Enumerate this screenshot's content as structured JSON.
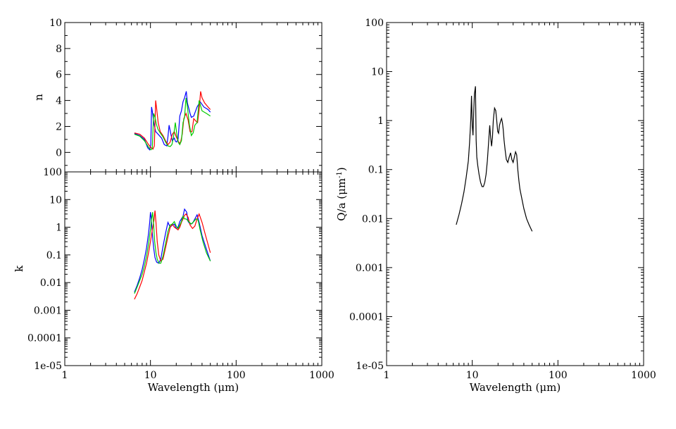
{
  "chart_data": [
    {
      "id": "panel_n",
      "type": "line",
      "title": "",
      "xlabel": "",
      "ylabel": "n",
      "xscale": "log",
      "yscale": "linear",
      "xlim": [
        1,
        1000
      ],
      "ylim": [
        -1.5,
        10
      ],
      "x_ticks": [],
      "y_ticks": [
        "0",
        "2",
        "4",
        "6",
        "8",
        "10"
      ],
      "y_tick_values": [
        0,
        2,
        4,
        6,
        8,
        10
      ],
      "series": [
        {
          "color": "#0000ff",
          "x": [
            6.5,
            7.5,
            8.5,
            9.3,
            9.8,
            10.1,
            10.3,
            10.5,
            11.0,
            11.5,
            12.3,
            13.5,
            14.5,
            15.5,
            16.0,
            16.5,
            17.3,
            18.0,
            19.0,
            19.6,
            20.2,
            21.0,
            22.0,
            23.0,
            24.0,
            25.0,
            26.2,
            27.0,
            28.0,
            29.0,
            30.0,
            32.0,
            35.0,
            38.0,
            42.0,
            47.0,
            50.0
          ],
          "y": [
            1.45,
            1.3,
            1.0,
            0.35,
            0.2,
            0.6,
            3.5,
            3.2,
            2.2,
            1.6,
            1.4,
            1.1,
            0.6,
            0.5,
            1.2,
            2.1,
            1.4,
            0.9,
            1.1,
            0.85,
            0.8,
            1.0,
            2.8,
            3.2,
            3.9,
            4.2,
            4.7,
            3.8,
            3.4,
            3.0,
            2.7,
            2.8,
            3.5,
            3.9,
            3.5,
            3.3,
            3.1
          ]
        },
        {
          "color": "#ff0000",
          "x": [
            6.5,
            7.5,
            8.5,
            9.5,
            10.2,
            10.7,
            11.1,
            11.5,
            11.8,
            12.3,
            13.0,
            14.0,
            15.0,
            16.0,
            17.0,
            18.0,
            19.0,
            20.0,
            21.0,
            21.8,
            22.5,
            23.5,
            24.5,
            26.0,
            27.5,
            29.0,
            30.5,
            32.0,
            34.0,
            35.5,
            37.0,
            38.5,
            40.0,
            43.0,
            47.0,
            50.0
          ],
          "y": [
            1.5,
            1.4,
            1.1,
            0.6,
            0.35,
            0.25,
            0.5,
            4.0,
            3.4,
            2.3,
            1.6,
            1.3,
            0.9,
            0.6,
            0.8,
            1.4,
            1.6,
            1.2,
            0.9,
            0.7,
            0.8,
            1.4,
            2.6,
            3.0,
            2.5,
            1.6,
            1.6,
            2.6,
            2.4,
            2.3,
            3.3,
            4.7,
            4.2,
            3.8,
            3.5,
            3.3
          ]
        },
        {
          "color": "#00cc00",
          "x": [
            6.5,
            7.5,
            8.5,
            9.5,
            10.1,
            10.5,
            10.9,
            11.3,
            11.7,
            12.2,
            13.0,
            14.0,
            15.0,
            16.0,
            17.0,
            17.8,
            18.5,
            19.5,
            20.5,
            21.2,
            22.0,
            23.0,
            24.0,
            25.0,
            26.0,
            27.0,
            28.5,
            30.0,
            31.5,
            33.0,
            35.0,
            37.0,
            40.0,
            45.0,
            50.0
          ],
          "y": [
            1.4,
            1.25,
            0.9,
            0.4,
            0.2,
            0.3,
            3.0,
            2.7,
            2.2,
            1.8,
            1.5,
            1.2,
            0.8,
            0.5,
            0.45,
            0.6,
            1.1,
            2.3,
            1.2,
            0.75,
            0.6,
            0.9,
            2.3,
            2.7,
            4.2,
            3.5,
            2.1,
            1.3,
            1.5,
            2.1,
            2.3,
            4.0,
            3.2,
            3.0,
            2.8
          ]
        }
      ]
    },
    {
      "id": "panel_k",
      "type": "line",
      "title": "",
      "xlabel": "Wavelength (μm)",
      "ylabel": "k",
      "xscale": "log",
      "yscale": "log",
      "xlim": [
        1,
        1000
      ],
      "ylim": [
        1e-05,
        100
      ],
      "x_ticks": [
        "1",
        "10",
        "100",
        "1000"
      ],
      "x_tick_values": [
        1,
        10,
        100,
        1000
      ],
      "y_ticks": [
        "1e-05",
        "0.0001",
        "0.001",
        "0.01",
        "0.1",
        "1",
        "10",
        "100"
      ],
      "y_tick_values": [
        1e-05,
        0.0001,
        0.001,
        0.01,
        0.1,
        1,
        10,
        100
      ],
      "series": [
        {
          "color": "#0000ff",
          "x": [
            6.5,
            7.0,
            7.5,
            8.0,
            8.5,
            9.0,
            9.5,
            9.8,
            10.0,
            10.2,
            10.5,
            10.9,
            11.3,
            11.8,
            12.5,
            13.2,
            14.0,
            15.0,
            16.0,
            17.0,
            18.0,
            19.0,
            20.0,
            21.0,
            22.0,
            23.0,
            24.0,
            25.0,
            26.5,
            27.5,
            29.0,
            31.0,
            33.0,
            35.0,
            37.0,
            40.0,
            44.0,
            50.0
          ],
          "y": [
            0.0045,
            0.008,
            0.015,
            0.03,
            0.07,
            0.18,
            0.6,
            1.5,
            3.5,
            2.2,
            0.6,
            0.18,
            0.08,
            0.055,
            0.05,
            0.07,
            0.2,
            0.6,
            1.5,
            1.0,
            1.2,
            1.3,
            0.9,
            1.0,
            1.6,
            2.0,
            2.5,
            4.5,
            3.5,
            1.6,
            1.3,
            1.4,
            2.0,
            2.8,
            1.5,
            0.5,
            0.2,
            0.06
          ]
        },
        {
          "color": "#ff0000",
          "x": [
            6.5,
            7.0,
            7.5,
            8.0,
            8.5,
            9.0,
            9.5,
            10.0,
            10.5,
            11.0,
            11.3,
            11.6,
            12.0,
            12.5,
            13.2,
            14.0,
            15.0,
            16.0,
            17.0,
            18.0,
            19.0,
            20.0,
            21.0,
            22.0,
            23.0,
            24.0,
            25.0,
            26.0,
            27.5,
            29.0,
            31.0,
            33.0,
            35.0,
            37.0,
            40.0,
            44.0,
            50.0
          ],
          "y": [
            0.0025,
            0.004,
            0.007,
            0.012,
            0.025,
            0.05,
            0.12,
            0.3,
            0.8,
            1.8,
            4.0,
            1.5,
            0.3,
            0.1,
            0.06,
            0.07,
            0.18,
            0.45,
            1.0,
            1.3,
            1.0,
            0.9,
            0.8,
            1.0,
            1.5,
            2.0,
            2.7,
            3.0,
            2.3,
            1.2,
            0.9,
            1.1,
            2.0,
            3.0,
            1.5,
            0.5,
            0.12
          ]
        },
        {
          "color": "#00cc00",
          "x": [
            6.5,
            7.0,
            7.5,
            8.0,
            8.5,
            9.0,
            9.5,
            10.0,
            10.3,
            10.6,
            10.9,
            11.2,
            11.6,
            12.0,
            12.6,
            13.2,
            14.0,
            15.0,
            16.0,
            17.0,
            18.0,
            19.0,
            20.0,
            21.0,
            22.0,
            23.0,
            24.0,
            25.0,
            26.0,
            27.0,
            28.5,
            30.0,
            32.0,
            34.0,
            36.0,
            38.0,
            41.0,
            45.0,
            50.0
          ],
          "y": [
            0.004,
            0.007,
            0.012,
            0.02,
            0.04,
            0.09,
            0.25,
            0.8,
            2.0,
            3.5,
            1.2,
            0.3,
            0.12,
            0.07,
            0.05,
            0.05,
            0.09,
            0.25,
            0.7,
            1.2,
            1.3,
            1.6,
            1.1,
            0.9,
            1.2,
            1.6,
            2.5,
            2.0,
            2.0,
            1.8,
            1.5,
            1.3,
            1.6,
            2.0,
            1.8,
            0.8,
            0.3,
            0.12,
            0.06
          ]
        }
      ]
    },
    {
      "id": "panel_q",
      "type": "line",
      "title": "",
      "xlabel": "Wavelength (μm)",
      "ylabel": "Q/a (μm⁻¹)",
      "xscale": "log",
      "yscale": "log",
      "xlim": [
        1,
        1000
      ],
      "ylim": [
        1e-05,
        100
      ],
      "x_ticks": [
        "1",
        "10",
        "100",
        "1000"
      ],
      "x_tick_values": [
        1,
        10,
        100,
        1000
      ],
      "y_ticks": [
        "1e-05",
        "0.0001",
        "0.001",
        "0.01",
        "0.1",
        "1",
        "10",
        "100"
      ],
      "y_tick_values": [
        1e-05,
        0.0001,
        0.001,
        0.01,
        0.1,
        1,
        10,
        100
      ],
      "series": [
        {
          "color": "#000000",
          "x": [
            6.5,
            7.0,
            7.5,
            8.0,
            8.5,
            9.0,
            9.3,
            9.6,
            9.8,
            10.0,
            10.2,
            10.4,
            10.6,
            10.9,
            11.1,
            11.3,
            11.6,
            12.0,
            12.5,
            13.0,
            13.5,
            14.0,
            14.5,
            15.0,
            15.5,
            16.0,
            16.4,
            16.8,
            17.2,
            17.6,
            18.2,
            18.8,
            19.3,
            19.8,
            20.3,
            20.8,
            21.5,
            22.0,
            22.5,
            23.0,
            23.5,
            24.2,
            25.0,
            26.0,
            27.0,
            28.0,
            29.0,
            30.0,
            31.0,
            32.0,
            33.0,
            34.0,
            35.0,
            36.0,
            38.0,
            40.0,
            43.0,
            46.0,
            50.0
          ],
          "y": [
            0.0075,
            0.012,
            0.02,
            0.035,
            0.07,
            0.15,
            0.35,
            1.0,
            3.2,
            0.8,
            0.5,
            1.5,
            3.5,
            5.0,
            0.4,
            0.18,
            0.12,
            0.08,
            0.055,
            0.045,
            0.045,
            0.055,
            0.08,
            0.15,
            0.35,
            0.8,
            0.45,
            0.3,
            0.45,
            1.0,
            1.8,
            1.6,
            1.0,
            0.6,
            0.55,
            0.8,
            1.0,
            1.1,
            0.9,
            0.65,
            0.4,
            0.25,
            0.16,
            0.14,
            0.18,
            0.22,
            0.16,
            0.14,
            0.18,
            0.23,
            0.2,
            0.1,
            0.06,
            0.04,
            0.025,
            0.016,
            0.01,
            0.0075,
            0.0055
          ]
        }
      ]
    }
  ]
}
